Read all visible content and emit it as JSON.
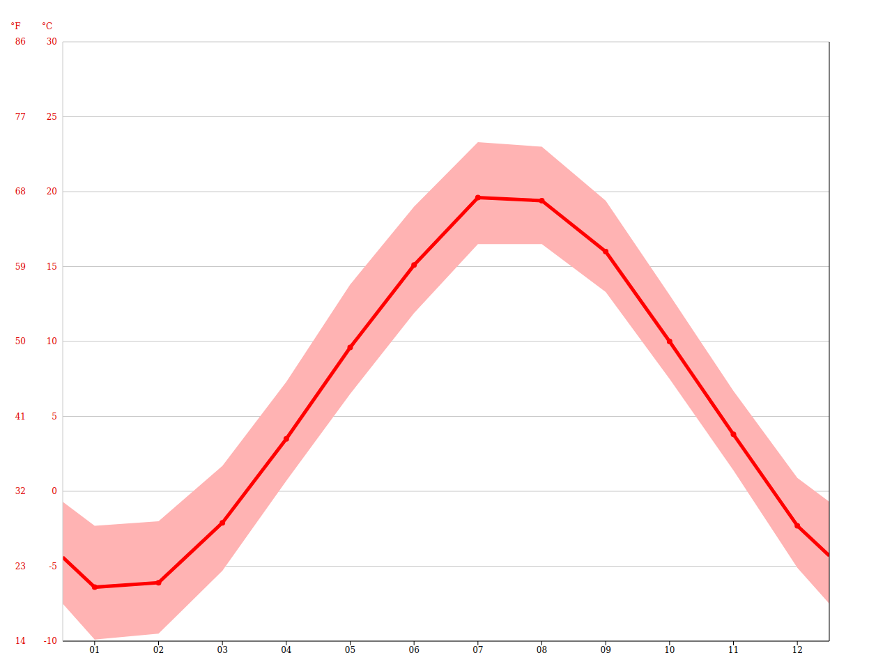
{
  "chart_data": {
    "type": "line",
    "x": [
      0.5,
      1,
      2,
      3,
      4,
      5,
      6,
      7,
      8,
      9,
      10,
      11,
      12,
      12.5
    ],
    "values": [
      -4.4,
      -6.4,
      -6.1,
      -2.1,
      3.5,
      9.6,
      15.1,
      19.6,
      19.4,
      16.0,
      10.0,
      3.8,
      -2.3,
      -4.3
    ],
    "upper": [
      -0.7,
      -2.3,
      -2.0,
      1.7,
      7.3,
      13.8,
      19.0,
      23.3,
      23.0,
      19.4,
      13.1,
      6.7,
      0.9,
      -0.7
    ],
    "lower": [
      -7.5,
      -9.9,
      -9.5,
      -5.3,
      0.7,
      6.5,
      11.9,
      16.5,
      16.5,
      13.3,
      7.5,
      1.4,
      -5.1,
      -7.5
    ],
    "color": "#ff0000",
    "xlim": [
      0.5,
      12.5
    ],
    "xticks": [
      {
        "value": 1,
        "label": "01"
      },
      {
        "value": 2,
        "label": "02"
      },
      {
        "value": 3,
        "label": "03"
      },
      {
        "value": 4,
        "label": "04"
      },
      {
        "value": 5,
        "label": "05"
      },
      {
        "value": 6,
        "label": "06"
      },
      {
        "value": 7,
        "label": "07"
      },
      {
        "value": 8,
        "label": "08"
      },
      {
        "value": 9,
        "label": "09"
      },
      {
        "value": 10,
        "label": "10"
      },
      {
        "value": 11,
        "label": "11"
      },
      {
        "value": 12,
        "label": "12"
      }
    ],
    "y_label": "°C",
    "ylim": [
      -10,
      30
    ],
    "yticks": [
      -10,
      -5,
      0,
      5,
      10,
      15,
      20,
      25,
      30
    ],
    "y2_label": "°F",
    "y2lim": [
      14,
      86
    ],
    "y2ticks": [
      14,
      23,
      32,
      41,
      50,
      59,
      68,
      77,
      86
    ],
    "grid": true
  }
}
